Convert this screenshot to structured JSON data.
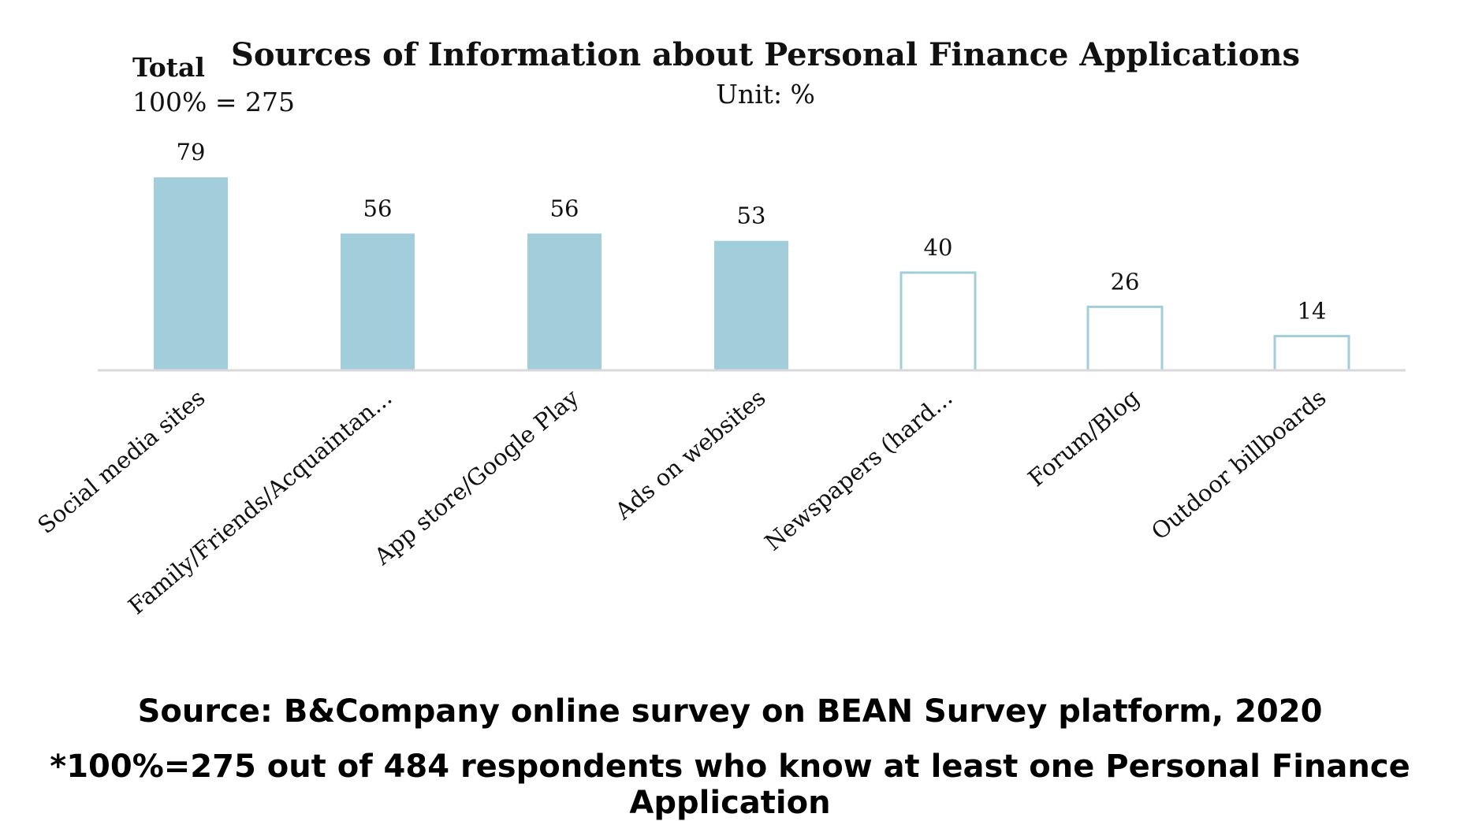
{
  "chart_data": {
    "type": "bar",
    "title": "Sources of Information about Personal Finance Applications",
    "subtitle": "Unit: %",
    "total_label": "Total",
    "total_value": "100% = 275",
    "categories": [
      "Social media sites",
      "Family/Friends/Acquaintan...",
      "App store/Google Play",
      "Ads on websites",
      "Newspapers (hard...",
      "Forum/Blog",
      "Outdoor billboards"
    ],
    "values": [
      79,
      56,
      56,
      53,
      40,
      26,
      14
    ],
    "bar_styles": [
      "filled",
      "filled",
      "filled",
      "filled",
      "outline",
      "outline",
      "outline"
    ],
    "ylim": [
      0,
      100
    ],
    "grid": false,
    "colors": {
      "bar": "#a2cddb",
      "axis": "#d9d9d9",
      "text": "#111111"
    }
  },
  "footer": {
    "source": "Source: B&Company online survey on BEAN Survey platform, 2020",
    "note": "*100%=275 out of 484 respondents who know at least one Personal Finance Application"
  }
}
